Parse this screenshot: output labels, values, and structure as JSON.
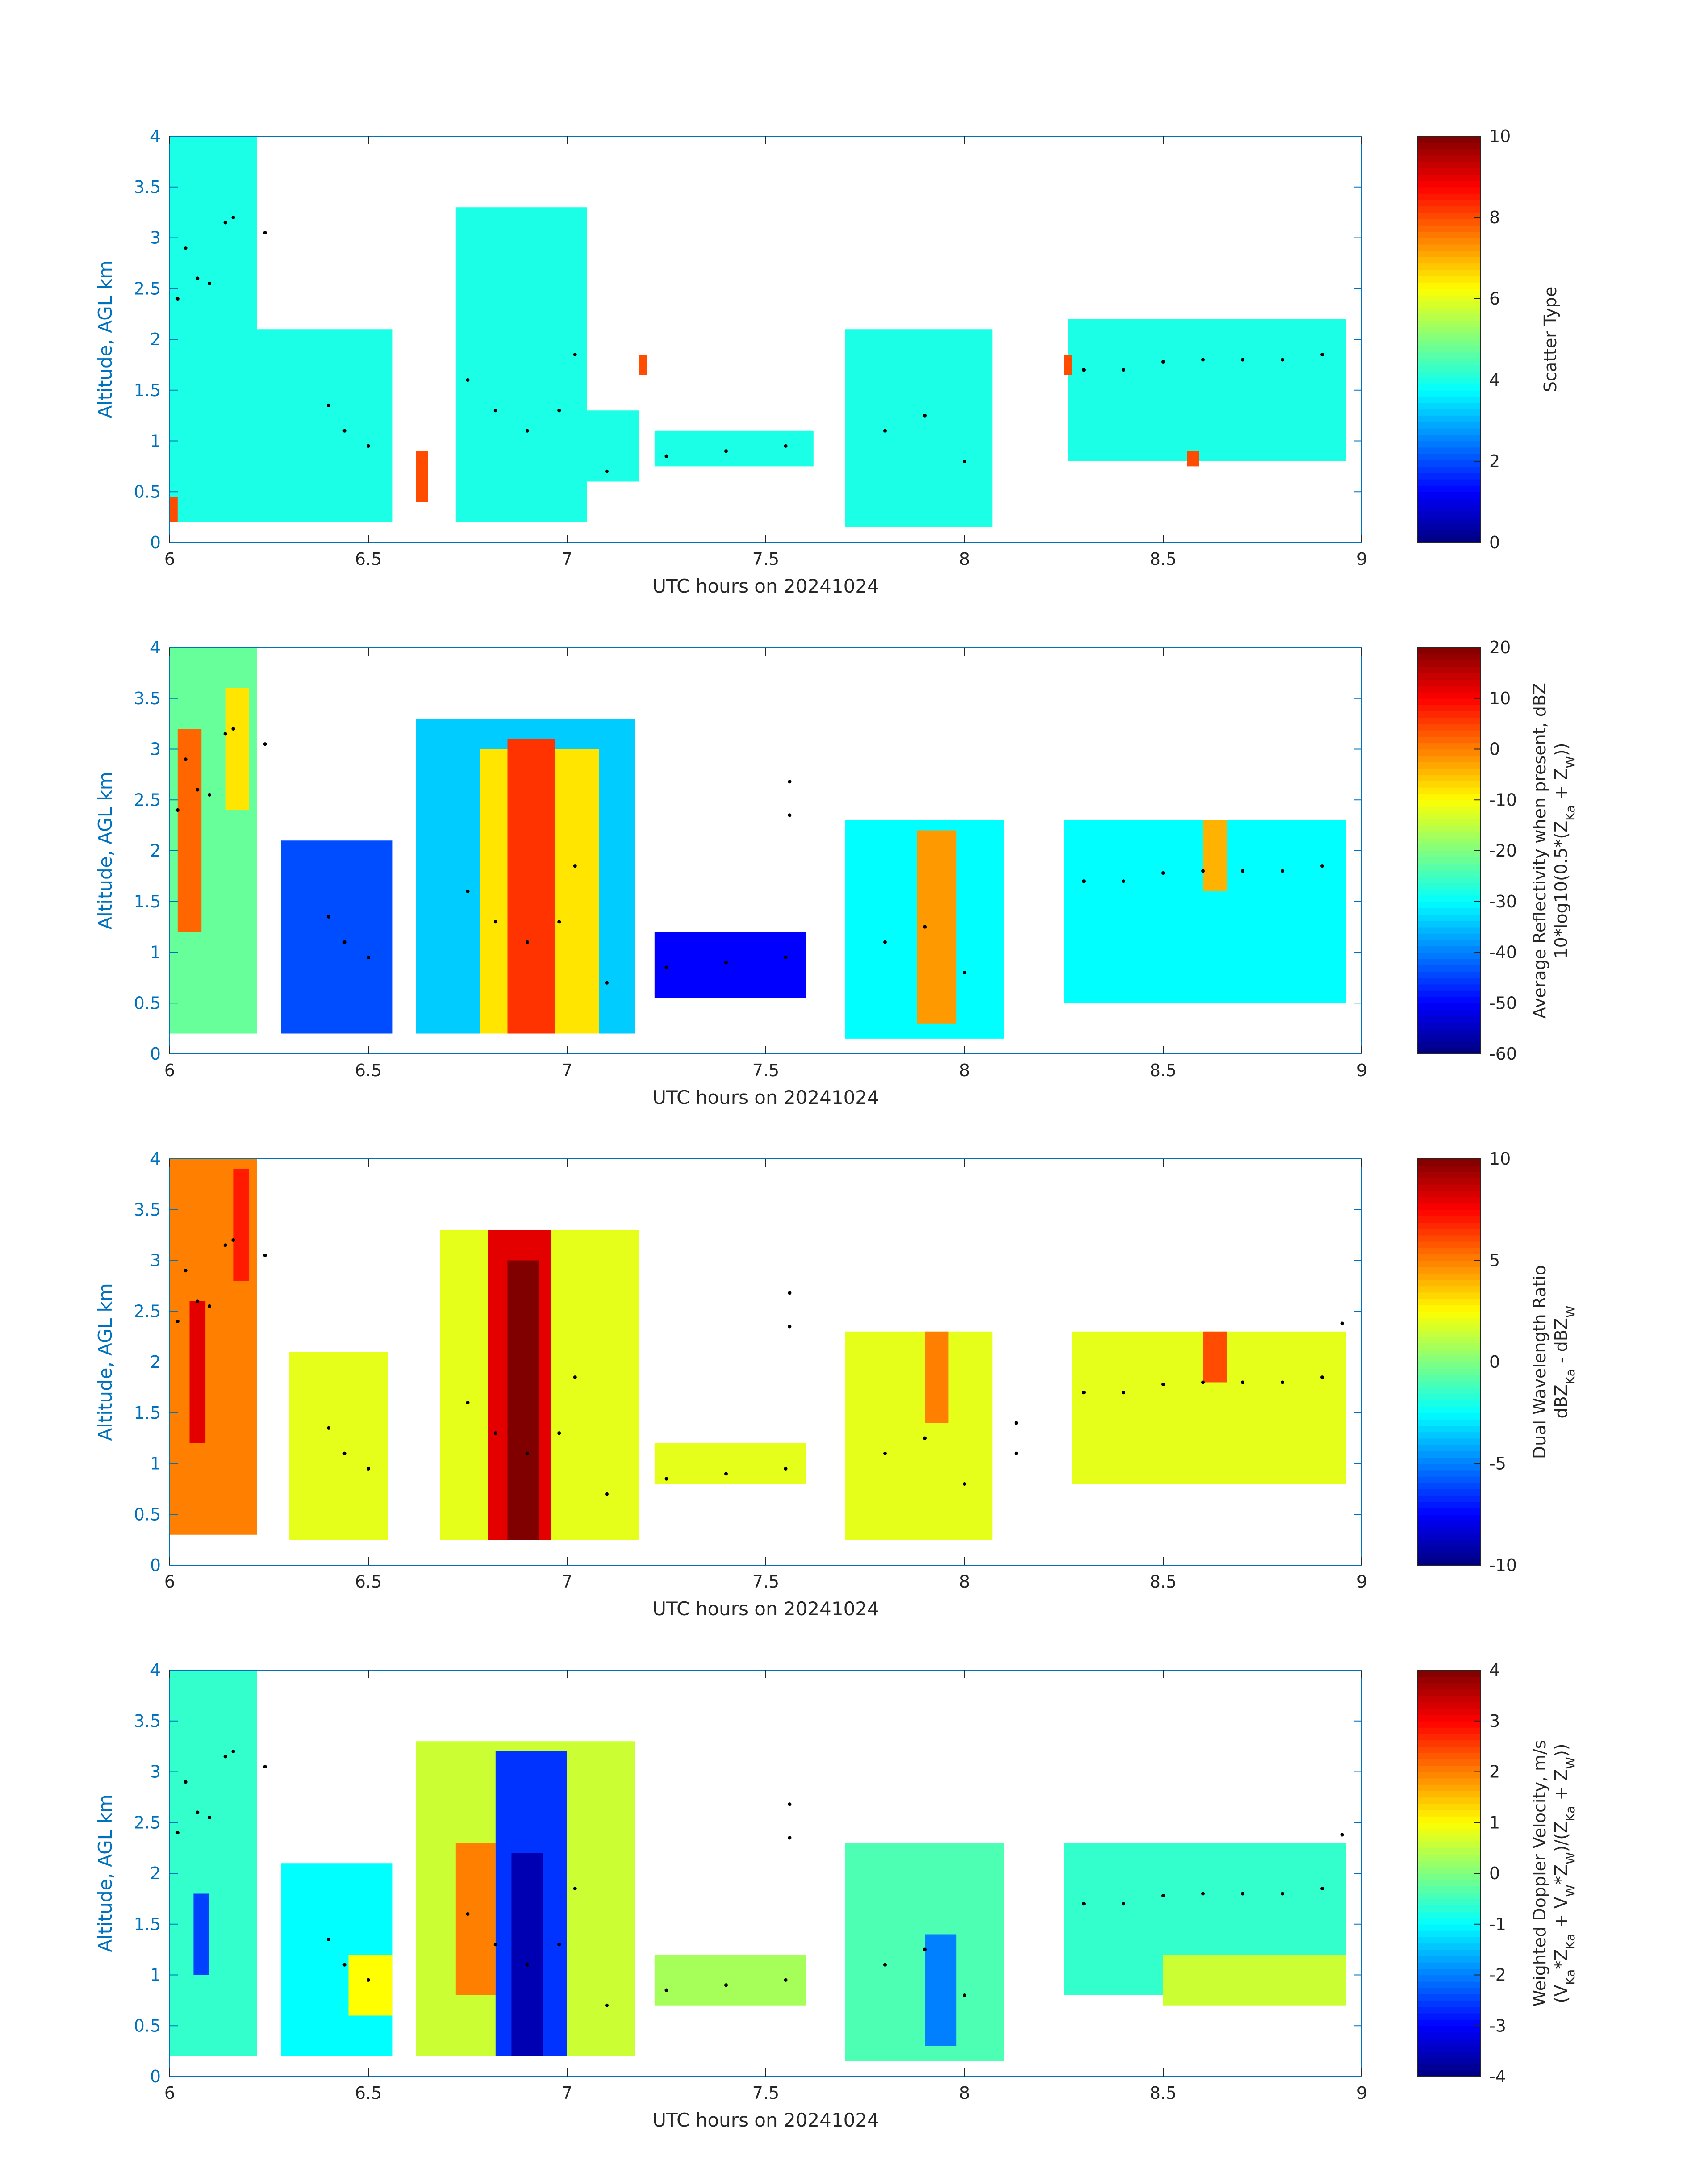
{
  "chart_data": [
    {
      "type": "heatmap",
      "xlabel": "UTC hours on 20241024",
      "ylabel": "Altitude, AGL km",
      "xlim": [
        6,
        9
      ],
      "ylim": [
        0,
        4
      ],
      "xticks": [
        "6",
        "6.5",
        "7",
        "7.5",
        "8",
        "8.5",
        "9"
      ],
      "yticks": [
        "0",
        "0.5",
        "1",
        "1.5",
        "2",
        "2.5",
        "3",
        "3.5",
        "4"
      ],
      "colorbar": {
        "label_lines": [
          "Scatter Type"
        ],
        "range": [
          0,
          10
        ],
        "ticks": [
          "0",
          "2",
          "4",
          "6",
          "8",
          "10"
        ],
        "colormap": "jet"
      },
      "regions": [
        {
          "x": [
            6.0,
            6.22
          ],
          "y": [
            0.2,
            4.0
          ],
          "value": 4
        },
        {
          "x": [
            6.22,
            6.56
          ],
          "y": [
            0.2,
            2.1
          ],
          "value": 4
        },
        {
          "x": [
            6.72,
            7.05
          ],
          "y": [
            0.2,
            3.3
          ],
          "value": 4
        },
        {
          "x": [
            7.05,
            7.18
          ],
          "y": [
            0.6,
            1.3
          ],
          "value": 4
        },
        {
          "x": [
            7.22,
            7.62
          ],
          "y": [
            0.75,
            1.1
          ],
          "value": 4
        },
        {
          "x": [
            7.7,
            8.07
          ],
          "y": [
            0.15,
            2.1
          ],
          "value": 4
        },
        {
          "x": [
            8.26,
            8.96
          ],
          "y": [
            0.8,
            2.2
          ],
          "value": 4
        },
        {
          "x": [
            6.0,
            6.02
          ],
          "y": [
            0.2,
            0.45
          ],
          "value": 8
        },
        {
          "x": [
            6.62,
            6.65
          ],
          "y": [
            0.4,
            0.9
          ],
          "value": 8
        },
        {
          "x": [
            7.18,
            7.2
          ],
          "y": [
            1.65,
            1.85
          ],
          "value": 8
        },
        {
          "x": [
            8.25,
            8.27
          ],
          "y": [
            1.65,
            1.85
          ],
          "value": 8
        },
        {
          "x": [
            8.56,
            8.59
          ],
          "y": [
            0.75,
            0.9
          ],
          "value": 8
        }
      ],
      "scatter_points": [
        [
          6.02,
          2.4
        ],
        [
          6.04,
          2.9
        ],
        [
          6.07,
          2.6
        ],
        [
          6.1,
          2.55
        ],
        [
          6.14,
          3.15
        ],
        [
          6.16,
          3.2
        ],
        [
          6.24,
          3.05
        ],
        [
          6.4,
          1.35
        ],
        [
          6.44,
          1.1
        ],
        [
          6.5,
          0.95
        ],
        [
          6.75,
          1.6
        ],
        [
          6.82,
          1.3
        ],
        [
          6.9,
          1.1
        ],
        [
          6.98,
          1.3
        ],
        [
          7.02,
          1.85
        ],
        [
          7.1,
          0.7
        ],
        [
          7.25,
          0.85
        ],
        [
          7.4,
          0.9
        ],
        [
          7.55,
          0.95
        ],
        [
          7.8,
          1.1
        ],
        [
          7.9,
          1.25
        ],
        [
          8.0,
          0.8
        ],
        [
          8.3,
          1.7
        ],
        [
          8.4,
          1.7
        ],
        [
          8.5,
          1.78
        ],
        [
          8.6,
          1.8
        ],
        [
          8.7,
          1.8
        ],
        [
          8.8,
          1.8
        ],
        [
          8.9,
          1.85
        ]
      ]
    },
    {
      "type": "heatmap",
      "xlabel": "UTC hours on 20241024",
      "ylabel": "Altitude, AGL km",
      "xlim": [
        6,
        9
      ],
      "ylim": [
        0,
        4
      ],
      "xticks": [
        "6",
        "6.5",
        "7",
        "7.5",
        "8",
        "8.5",
        "9"
      ],
      "yticks": [
        "0",
        "0.5",
        "1",
        "1.5",
        "2",
        "2.5",
        "3",
        "3.5",
        "4"
      ],
      "colorbar": {
        "label_lines": [
          "Average Reflectivity when present, dBZ",
          "10*log10(0.5*(Z_Ka + Z_W))"
        ],
        "range": [
          -60,
          20
        ],
        "ticks": [
          "-60",
          "-50",
          "-40",
          "-30",
          "-20",
          "-10",
          "0",
          "10",
          "20"
        ],
        "colormap": "jet"
      },
      "regions": [
        {
          "x": [
            6.0,
            6.22
          ],
          "y": [
            0.2,
            4.0
          ],
          "value": -22
        },
        {
          "x": [
            6.02,
            6.08
          ],
          "y": [
            1.2,
            3.2
          ],
          "value": 2
        },
        {
          "x": [
            6.14,
            6.2
          ],
          "y": [
            2.4,
            3.6
          ],
          "value": -8
        },
        {
          "x": [
            6.28,
            6.56
          ],
          "y": [
            0.2,
            2.1
          ],
          "value": -44
        },
        {
          "x": [
            6.62,
            7.17
          ],
          "y": [
            0.2,
            3.3
          ],
          "value": -34
        },
        {
          "x": [
            6.78,
            7.08
          ],
          "y": [
            0.2,
            3.0
          ],
          "value": -8
        },
        {
          "x": [
            6.85,
            6.97
          ],
          "y": [
            0.2,
            3.1
          ],
          "value": 6
        },
        {
          "x": [
            7.22,
            7.6
          ],
          "y": [
            0.55,
            1.2
          ],
          "value": -50
        },
        {
          "x": [
            7.7,
            8.1
          ],
          "y": [
            0.15,
            2.3
          ],
          "value": -30
        },
        {
          "x": [
            7.88,
            7.98
          ],
          "y": [
            0.3,
            2.2
          ],
          "value": -2
        },
        {
          "x": [
            8.25,
            8.96
          ],
          "y": [
            0.5,
            2.3
          ],
          "value": -30
        },
        {
          "x": [
            8.6,
            8.66
          ],
          "y": [
            1.6,
            2.3
          ],
          "value": -4
        }
      ],
      "scatter_points": [
        [
          6.02,
          2.4
        ],
        [
          6.04,
          2.9
        ],
        [
          6.07,
          2.6
        ],
        [
          6.1,
          2.55
        ],
        [
          6.14,
          3.15
        ],
        [
          6.16,
          3.2
        ],
        [
          6.24,
          3.05
        ],
        [
          6.4,
          1.35
        ],
        [
          6.44,
          1.1
        ],
        [
          6.5,
          0.95
        ],
        [
          6.75,
          1.6
        ],
        [
          6.82,
          1.3
        ],
        [
          6.9,
          1.1
        ],
        [
          6.98,
          1.3
        ],
        [
          7.02,
          1.85
        ],
        [
          7.1,
          0.7
        ],
        [
          7.25,
          0.85
        ],
        [
          7.4,
          0.9
        ],
        [
          7.55,
          0.95
        ],
        [
          7.56,
          2.68
        ],
        [
          7.56,
          2.35
        ],
        [
          7.8,
          1.1
        ],
        [
          7.9,
          1.25
        ],
        [
          8.0,
          0.8
        ],
        [
          8.3,
          1.7
        ],
        [
          8.4,
          1.7
        ],
        [
          8.5,
          1.78
        ],
        [
          8.6,
          1.8
        ],
        [
          8.7,
          1.8
        ],
        [
          8.8,
          1.8
        ],
        [
          8.9,
          1.85
        ]
      ]
    },
    {
      "type": "heatmap",
      "xlabel": "UTC hours on 20241024",
      "ylabel": "Altitude, AGL km",
      "xlim": [
        6,
        9
      ],
      "ylim": [
        0,
        4
      ],
      "xticks": [
        "6",
        "6.5",
        "7",
        "7.5",
        "8",
        "8.5",
        "9"
      ],
      "yticks": [
        "0",
        "0.5",
        "1",
        "1.5",
        "2",
        "2.5",
        "3",
        "3.5",
        "4"
      ],
      "colorbar": {
        "label_lines": [
          "Dual Wavelength Ratio",
          "dBZ_Ka - dBZ_W"
        ],
        "range": [
          -10,
          10
        ],
        "ticks": [
          "-10",
          "-5",
          "0",
          "5",
          "10"
        ],
        "colormap": "jet"
      },
      "regions": [
        {
          "x": [
            6.0,
            6.22
          ],
          "y": [
            0.3,
            4.0
          ],
          "value": 5
        },
        {
          "x": [
            6.05,
            6.09
          ],
          "y": [
            1.2,
            2.6
          ],
          "value": 8
        },
        {
          "x": [
            6.16,
            6.2
          ],
          "y": [
            2.8,
            3.9
          ],
          "value": 7
        },
        {
          "x": [
            6.3,
            6.55
          ],
          "y": [
            0.25,
            2.1
          ],
          "value": 2
        },
        {
          "x": [
            6.68,
            7.18
          ],
          "y": [
            0.25,
            3.3
          ],
          "value": 2
        },
        {
          "x": [
            6.8,
            6.96
          ],
          "y": [
            0.25,
            3.3
          ],
          "value": 8
        },
        {
          "x": [
            6.85,
            6.93
          ],
          "y": [
            0.25,
            3.0
          ],
          "value": 10
        },
        {
          "x": [
            7.22,
            7.6
          ],
          "y": [
            0.8,
            1.2
          ],
          "value": 2
        },
        {
          "x": [
            7.7,
            8.07
          ],
          "y": [
            0.25,
            2.3
          ],
          "value": 2
        },
        {
          "x": [
            7.9,
            7.96
          ],
          "y": [
            1.4,
            2.3
          ],
          "value": 5
        },
        {
          "x": [
            8.27,
            8.96
          ],
          "y": [
            0.8,
            2.3
          ],
          "value": 2
        },
        {
          "x": [
            8.6,
            8.66
          ],
          "y": [
            1.8,
            2.3
          ],
          "value": 6
        }
      ],
      "scatter_points": [
        [
          6.02,
          2.4
        ],
        [
          6.04,
          2.9
        ],
        [
          6.07,
          2.6
        ],
        [
          6.1,
          2.55
        ],
        [
          6.14,
          3.15
        ],
        [
          6.16,
          3.2
        ],
        [
          6.24,
          3.05
        ],
        [
          6.4,
          1.35
        ],
        [
          6.44,
          1.1
        ],
        [
          6.5,
          0.95
        ],
        [
          6.75,
          1.6
        ],
        [
          6.82,
          1.3
        ],
        [
          6.9,
          1.1
        ],
        [
          6.98,
          1.3
        ],
        [
          7.02,
          1.85
        ],
        [
          7.1,
          0.7
        ],
        [
          7.25,
          0.85
        ],
        [
          7.4,
          0.9
        ],
        [
          7.55,
          0.95
        ],
        [
          7.56,
          2.68
        ],
        [
          7.56,
          2.35
        ],
        [
          7.8,
          1.1
        ],
        [
          7.9,
          1.25
        ],
        [
          8.0,
          0.8
        ],
        [
          8.13,
          1.4
        ],
        [
          8.13,
          1.1
        ],
        [
          8.3,
          1.7
        ],
        [
          8.4,
          1.7
        ],
        [
          8.5,
          1.78
        ],
        [
          8.6,
          1.8
        ],
        [
          8.7,
          1.8
        ],
        [
          8.8,
          1.8
        ],
        [
          8.9,
          1.85
        ],
        [
          8.95,
          2.38
        ]
      ]
    },
    {
      "type": "heatmap",
      "xlabel": "UTC hours on 20241024",
      "ylabel": "Altitude, AGL km",
      "xlim": [
        6,
        9
      ],
      "ylim": [
        0,
        4
      ],
      "xticks": [
        "6",
        "6.5",
        "7",
        "7.5",
        "8",
        "8.5",
        "9"
      ],
      "yticks": [
        "0",
        "0.5",
        "1",
        "1.5",
        "2",
        "2.5",
        "3",
        "3.5",
        "4"
      ],
      "colorbar": {
        "label_lines": [
          "Weighted Doppler Velocity, m/s",
          "(V_Ka*Z_Ka + V_W*Z_W)/(Z_Ka + Z_W))"
        ],
        "range": [
          -4,
          4
        ],
        "ticks": [
          "-4",
          "-3",
          "-2",
          "-1",
          "0",
          "1",
          "2",
          "3",
          "4"
        ],
        "colormap": "jet"
      },
      "regions": [
        {
          "x": [
            6.0,
            6.22
          ],
          "y": [
            0.2,
            4.0
          ],
          "value": -0.6
        },
        {
          "x": [
            6.06,
            6.1
          ],
          "y": [
            1.0,
            1.8
          ],
          "value": -2.5
        },
        {
          "x": [
            6.28,
            6.56
          ],
          "y": [
            0.2,
            2.1
          ],
          "value": -1.0
        },
        {
          "x": [
            6.45,
            6.56
          ],
          "y": [
            0.6,
            1.2
          ],
          "value": 1.0
        },
        {
          "x": [
            6.62,
            7.17
          ],
          "y": [
            0.2,
            3.3
          ],
          "value": 0.6
        },
        {
          "x": [
            6.72,
            6.82
          ],
          "y": [
            0.8,
            2.3
          ],
          "value": 2.0
        },
        {
          "x": [
            6.82,
            7.0
          ],
          "y": [
            0.2,
            3.2
          ],
          "value": -2.6
        },
        {
          "x": [
            6.86,
            6.94
          ],
          "y": [
            0.2,
            2.2
          ],
          "value": -3.6
        },
        {
          "x": [
            7.22,
            7.6
          ],
          "y": [
            0.7,
            1.2
          ],
          "value": 0.3
        },
        {
          "x": [
            7.7,
            8.1
          ],
          "y": [
            0.15,
            2.3
          ],
          "value": -0.4
        },
        {
          "x": [
            7.9,
            7.98
          ],
          "y": [
            0.3,
            1.4
          ],
          "value": -2.0
        },
        {
          "x": [
            8.25,
            8.96
          ],
          "y": [
            0.8,
            2.3
          ],
          "value": -0.6
        },
        {
          "x": [
            8.5,
            8.96
          ],
          "y": [
            0.7,
            1.2
          ],
          "value": 0.6
        }
      ],
      "scatter_points": [
        [
          6.02,
          2.4
        ],
        [
          6.04,
          2.9
        ],
        [
          6.07,
          2.6
        ],
        [
          6.1,
          2.55
        ],
        [
          6.14,
          3.15
        ],
        [
          6.16,
          3.2
        ],
        [
          6.24,
          3.05
        ],
        [
          6.4,
          1.35
        ],
        [
          6.44,
          1.1
        ],
        [
          6.5,
          0.95
        ],
        [
          6.75,
          1.6
        ],
        [
          6.82,
          1.3
        ],
        [
          6.9,
          1.1
        ],
        [
          6.98,
          1.3
        ],
        [
          7.02,
          1.85
        ],
        [
          7.1,
          0.7
        ],
        [
          7.25,
          0.85
        ],
        [
          7.4,
          0.9
        ],
        [
          7.55,
          0.95
        ],
        [
          7.56,
          2.68
        ],
        [
          7.56,
          2.35
        ],
        [
          7.8,
          1.1
        ],
        [
          7.9,
          1.25
        ],
        [
          8.0,
          0.8
        ],
        [
          8.3,
          1.7
        ],
        [
          8.4,
          1.7
        ],
        [
          8.5,
          1.78
        ],
        [
          8.6,
          1.8
        ],
        [
          8.7,
          1.8
        ],
        [
          8.8,
          1.8
        ],
        [
          8.9,
          1.85
        ],
        [
          8.95,
          2.38
        ]
      ]
    }
  ]
}
